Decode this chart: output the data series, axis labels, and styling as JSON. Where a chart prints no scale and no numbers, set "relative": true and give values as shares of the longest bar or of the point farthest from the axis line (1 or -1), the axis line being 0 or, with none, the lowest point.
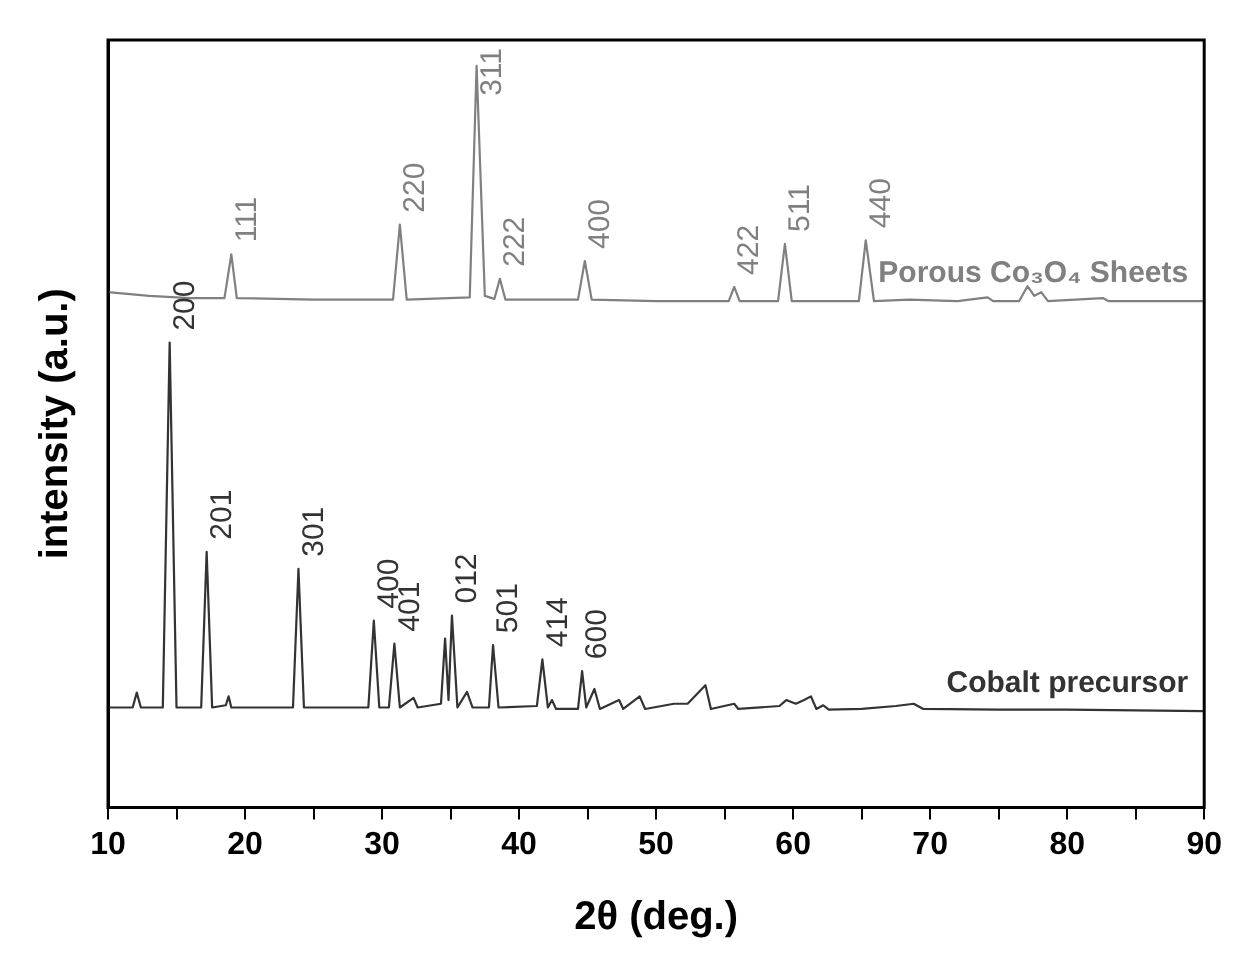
{
  "chart_data": {
    "type": "line",
    "relative": true,
    "xlabel": "2θ (deg.)",
    "ylabel": "intensity (a.u.)",
    "xlim": [
      10,
      90
    ],
    "xticks": [
      10,
      {
        "value": 15,
        "label": null
      },
      20,
      {
        "value": 25,
        "label": null
      },
      30,
      {
        "value": 35,
        "label": null
      },
      40,
      {
        "value": 45,
        "label": null
      },
      50,
      {
        "value": 55,
        "label": null
      },
      60,
      {
        "value": 65,
        "label": null
      },
      70,
      {
        "value": 75,
        "label": null
      },
      80,
      {
        "value": 85,
        "label": null
      },
      90
    ],
    "grid": false,
    "legend": false,
    "marker": "none",
    "line_style": "solid",
    "series": [
      {
        "name": "Porous Co₃O₄ Sheets",
        "color": "#808080",
        "x": [
          10,
          13,
          16,
          18.5,
          19.0,
          19.4,
          25,
          30.8,
          31.3,
          31.8,
          36.4,
          36.9,
          37.5,
          38.2,
          38.6,
          39.0,
          44.3,
          44.8,
          45.3,
          50,
          55.3,
          55.7,
          56.1,
          58.9,
          59.4,
          59.9,
          64.8,
          65.3,
          65.9,
          68.5,
          72,
          74.2,
          74.6,
          76.5,
          77.1,
          77.6,
          78.1,
          78.6,
          82.6,
          83,
          90
        ],
        "values": [
          0.695,
          0.69,
          0.687,
          0.687,
          0.746,
          0.687,
          0.685,
          0.685,
          0.786,
          0.685,
          0.688,
          1.0,
          0.69,
          0.686,
          0.713,
          0.685,
          0.685,
          0.737,
          0.685,
          0.683,
          0.683,
          0.702,
          0.683,
          0.683,
          0.76,
          0.683,
          0.683,
          0.765,
          0.683,
          0.685,
          0.683,
          0.688,
          0.683,
          0.683,
          0.703,
          0.69,
          0.695,
          0.683,
          0.687,
          0.683,
          0.683
        ]
      },
      {
        "name": "Cobalt precursor",
        "color": "#333333",
        "x": [
          10,
          11.8,
          12.1,
          12.4,
          14.0,
          14.5,
          15.0,
          16.8,
          17.2,
          17.6,
          18.6,
          18.8,
          19.0,
          23.5,
          23.9,
          24.3,
          29.0,
          29.4,
          29.8,
          30.5,
          30.9,
          31.3,
          32.3,
          32.6,
          34.3,
          34.6,
          34.85,
          35.1,
          35.5,
          36.2,
          36.6,
          37.8,
          38.1,
          38.5,
          41.3,
          41.7,
          42.1,
          42.4,
          42.7,
          44.3,
          44.6,
          44.9,
          45.5,
          45.9,
          47.3,
          47.6,
          48.8,
          49.2,
          51.3,
          52.3,
          53.6,
          54,
          55.7,
          56,
          59,
          59.5,
          60.2,
          60.8,
          61.3,
          61.7,
          62.2,
          62.6,
          65,
          67.5,
          68.8,
          69.5,
          75,
          80,
          90
        ],
        "values": [
          0.135,
          0.135,
          0.155,
          0.135,
          0.135,
          0.627,
          0.135,
          0.135,
          0.345,
          0.135,
          0.138,
          0.15,
          0.135,
          0.135,
          0.322,
          0.135,
          0.135,
          0.252,
          0.135,
          0.135,
          0.221,
          0.135,
          0.148,
          0.135,
          0.14,
          0.228,
          0.145,
          0.259,
          0.135,
          0.156,
          0.135,
          0.135,
          0.219,
          0.135,
          0.137,
          0.2,
          0.135,
          0.145,
          0.133,
          0.133,
          0.184,
          0.135,
          0.16,
          0.133,
          0.145,
          0.133,
          0.15,
          0.133,
          0.14,
          0.14,
          0.165,
          0.133,
          0.14,
          0.133,
          0.137,
          0.145,
          0.14,
          0.145,
          0.15,
          0.133,
          0.138,
          0.132,
          0.133,
          0.137,
          0.14,
          0.133,
          0.132,
          0.132,
          0.13
        ]
      }
    ],
    "annotations": [
      {
        "text": "111",
        "x": 19.0,
        "y": 0.746
      },
      {
        "text": "220",
        "x": 31.3,
        "y": 0.786
      },
      {
        "text": "311",
        "x": 36.9,
        "y": 1.0
      },
      {
        "text": "222",
        "x": 38.6,
        "y": 0.713
      },
      {
        "text": "400",
        "x": 44.8,
        "y": 0.737
      },
      {
        "text": "422",
        "x": 55.7,
        "y": 0.702
      },
      {
        "text": "511",
        "x": 59.4,
        "y": 0.76
      },
      {
        "text": "440",
        "x": 65.3,
        "y": 0.765
      },
      {
        "text": "200",
        "x": 14.5,
        "y": 0.627
      },
      {
        "text": "201",
        "x": 17.2,
        "y": 0.345
      },
      {
        "text": "301",
        "x": 23.9,
        "y": 0.322
      },
      {
        "text": "400",
        "x": 29.4,
        "y": 0.252
      },
      {
        "text": "401",
        "x": 30.9,
        "y": 0.221
      },
      {
        "text": "012",
        "x": 35.1,
        "y": 0.259
      },
      {
        "text": "501",
        "x": 38.1,
        "y": 0.219
      },
      {
        "text": "414",
        "x": 41.7,
        "y": 0.2
      },
      {
        "text": "600",
        "x": 44.6,
        "y": 0.184
      }
    ]
  }
}
